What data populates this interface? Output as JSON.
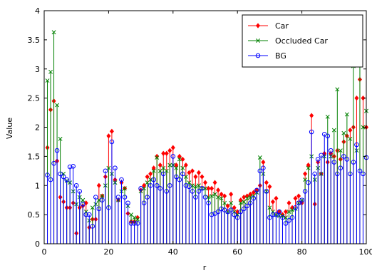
{
  "chart_data": {
    "type": "stem",
    "xlabel": "r",
    "ylabel": "Value",
    "xlim": [
      0,
      100
    ],
    "ylim": [
      0,
      4
    ],
    "xticks": [
      0,
      20,
      40,
      60,
      80,
      100
    ],
    "yticks": [
      0,
      0.5,
      1,
      1.5,
      2,
      2.5,
      3,
      3.5,
      4
    ],
    "grid": false,
    "legend_position": "top-right",
    "series": [
      {
        "name": "Car",
        "color": "#ff0000",
        "marker": "diamond-filled",
        "x": [
          1,
          2,
          3,
          4,
          5,
          6,
          7,
          8,
          9,
          10,
          11,
          12,
          13,
          14,
          15,
          16,
          17,
          18,
          19,
          20,
          21,
          22,
          23,
          24,
          25,
          26,
          27,
          28,
          29,
          30,
          31,
          32,
          33,
          34,
          35,
          36,
          37,
          38,
          39,
          40,
          41,
          42,
          43,
          44,
          45,
          46,
          47,
          48,
          49,
          50,
          51,
          52,
          53,
          54,
          55,
          56,
          57,
          58,
          59,
          60,
          61,
          62,
          63,
          64,
          65,
          66,
          67,
          68,
          69,
          70,
          71,
          72,
          73,
          74,
          75,
          76,
          77,
          78,
          79,
          80,
          81,
          82,
          83,
          84,
          85,
          86,
          87,
          88,
          89,
          90,
          91,
          92,
          93,
          94,
          95,
          96,
          97,
          98,
          99,
          100
        ],
        "y": [
          1.65,
          2.3,
          2.45,
          1.42,
          0.8,
          0.72,
          0.62,
          0.62,
          0.7,
          0.18,
          0.62,
          0.65,
          0.7,
          0.28,
          0.42,
          0.42,
          1.0,
          0.82,
          1.15,
          1.85,
          1.93,
          1.1,
          0.75,
          1.05,
          0.95,
          0.52,
          0.38,
          0.38,
          0.45,
          0.92,
          1.0,
          1.15,
          1.2,
          1.3,
          1.5,
          1.35,
          1.55,
          1.55,
          1.6,
          1.65,
          1.35,
          1.5,
          1.45,
          1.35,
          1.22,
          1.25,
          1.15,
          1.22,
          1.15,
          1.05,
          0.95,
          0.95,
          1.05,
          0.92,
          0.85,
          0.82,
          0.65,
          0.85,
          0.62,
          0.55,
          0.75,
          0.8,
          0.82,
          0.85,
          0.88,
          0.92,
          1.0,
          1.4,
          1.05,
          0.98,
          0.72,
          0.78,
          0.55,
          0.5,
          0.55,
          0.7,
          0.62,
          0.78,
          0.82,
          0.7,
          1.2,
          1.35,
          2.2,
          0.68,
          1.4,
          1.2,
          1.55,
          1.4,
          1.55,
          1.5,
          1.6,
          1.45,
          1.75,
          1.85,
          1.95,
          2.0,
          2.5,
          2.82,
          2.5,
          2.0
        ]
      },
      {
        "name": "Occluded Car",
        "color": "#008000",
        "marker": "x",
        "x": [
          1,
          2,
          3,
          4,
          5,
          6,
          7,
          8,
          9,
          10,
          11,
          12,
          13,
          14,
          15,
          16,
          17,
          18,
          19,
          20,
          21,
          22,
          23,
          24,
          25,
          26,
          27,
          28,
          29,
          30,
          31,
          32,
          33,
          34,
          35,
          36,
          37,
          38,
          39,
          40,
          41,
          42,
          43,
          44,
          45,
          46,
          47,
          48,
          49,
          50,
          51,
          52,
          53,
          54,
          55,
          56,
          57,
          58,
          59,
          60,
          61,
          62,
          63,
          64,
          65,
          66,
          67,
          68,
          69,
          70,
          71,
          72,
          73,
          74,
          75,
          76,
          77,
          78,
          79,
          80,
          81,
          82,
          83,
          84,
          85,
          86,
          87,
          88,
          89,
          90,
          91,
          92,
          93,
          94,
          95,
          96,
          97,
          98,
          99,
          100
        ],
        "y": [
          2.8,
          2.95,
          3.63,
          2.38,
          1.8,
          1.2,
          1.08,
          1.05,
          0.9,
          0.68,
          0.8,
          0.75,
          0.55,
          0.4,
          0.62,
          0.68,
          0.75,
          0.82,
          1.0,
          1.3,
          1.2,
          1.05,
          0.75,
          0.9,
          0.95,
          0.65,
          0.5,
          0.45,
          0.42,
          0.9,
          0.95,
          1.05,
          1.1,
          1.25,
          1.48,
          1.25,
          1.3,
          1.25,
          1.35,
          1.35,
          1.3,
          1.45,
          1.3,
          1.15,
          1.05,
          1.0,
          0.98,
          1.0,
          0.95,
          0.95,
          0.8,
          0.82,
          0.85,
          0.8,
          0.78,
          0.7,
          0.55,
          0.7,
          0.55,
          0.5,
          0.7,
          0.72,
          0.78,
          0.8,
          0.82,
          0.88,
          1.48,
          1.2,
          0.9,
          0.62,
          0.55,
          0.5,
          0.48,
          0.48,
          0.45,
          0.55,
          0.58,
          0.6,
          0.7,
          0.75,
          1.1,
          1.3,
          1.5,
          1.1,
          1.3,
          1.2,
          1.5,
          2.18,
          1.5,
          1.95,
          2.65,
          1.6,
          1.9,
          2.22,
          1.8,
          3.05,
          1.6,
          3.55,
          2.0,
          2.28
        ]
      },
      {
        "name": "BG",
        "color": "#0000ff",
        "marker": "circle-open",
        "x": [
          1,
          2,
          3,
          4,
          5,
          6,
          7,
          8,
          9,
          10,
          11,
          12,
          13,
          14,
          15,
          16,
          17,
          18,
          19,
          20,
          21,
          22,
          23,
          24,
          25,
          26,
          27,
          28,
          29,
          30,
          31,
          32,
          33,
          34,
          35,
          36,
          37,
          38,
          39,
          40,
          41,
          42,
          43,
          44,
          45,
          46,
          47,
          48,
          49,
          50,
          51,
          52,
          53,
          54,
          55,
          56,
          57,
          58,
          59,
          60,
          61,
          62,
          63,
          64,
          65,
          66,
          67,
          68,
          69,
          70,
          71,
          72,
          73,
          74,
          75,
          76,
          77,
          78,
          79,
          80,
          81,
          82,
          83,
          84,
          85,
          86,
          87,
          88,
          89,
          90,
          91,
          92,
          93,
          94,
          95,
          96,
          97,
          98,
          99,
          100
        ],
        "y": [
          1.18,
          1.1,
          1.38,
          1.6,
          1.2,
          1.15,
          1.1,
          1.32,
          1.33,
          1.0,
          0.9,
          0.68,
          0.5,
          0.5,
          0.3,
          0.8,
          0.6,
          0.75,
          1.25,
          0.62,
          1.75,
          1.3,
          0.8,
          1.1,
          0.8,
          0.7,
          0.35,
          0.35,
          0.35,
          0.95,
          0.7,
          0.8,
          1.0,
          1.1,
          1.0,
          0.95,
          1.2,
          0.9,
          1.0,
          1.5,
          1.15,
          1.1,
          1.2,
          1.0,
          0.98,
          0.9,
          0.8,
          0.9,
          0.95,
          0.8,
          0.7,
          0.5,
          0.52,
          0.55,
          0.6,
          0.58,
          0.55,
          0.58,
          0.5,
          0.45,
          0.55,
          0.6,
          0.65,
          0.7,
          0.78,
          0.92,
          1.25,
          1.3,
          0.9,
          0.45,
          0.5,
          0.5,
          0.55,
          0.45,
          0.35,
          0.4,
          0.45,
          0.62,
          0.7,
          0.75,
          0.9,
          1.05,
          1.92,
          1.2,
          1.45,
          1.52,
          1.88,
          1.85,
          1.6,
          1.4,
          1.2,
          1.3,
          1.5,
          1.45,
          1.2,
          1.4,
          1.7,
          1.25,
          1.2,
          1.48
        ]
      }
    ]
  }
}
